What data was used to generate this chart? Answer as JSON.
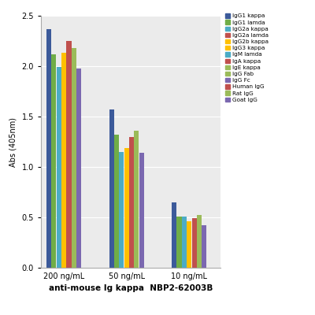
{
  "groups": [
    "200 ng/mL",
    "50 ng/mL",
    "10 ng/mL"
  ],
  "bar_colors": [
    "#3c5a9a",
    "#70ad47",
    "#4bacc6",
    "#ffc000",
    "#c0504d",
    "#9bbb59",
    "#7b68b0"
  ],
  "legend_colors": [
    "#3c5a9a",
    "#70ad47",
    "#4bacc6",
    "#c0504d",
    "#ffc000",
    "#ffc000",
    "#4bacc6",
    "#c0504d",
    "#9bbb59",
    "#9bbb59",
    "#7b68b0",
    "#c0504d",
    "#9bbb59",
    "#7b68b0"
  ],
  "legend_labels": [
    "IgG1 kappa",
    "IgG1 lamda",
    "IgG2a kappa",
    "IgG2a lamda",
    "IgG2b kappa",
    "IgG3 kappa",
    "IgM lamda",
    "IgA kappa",
    "IgE kappa",
    "IgG Fab",
    "IgG Fc",
    "Human IgG",
    "Rat IgG",
    "Goat IgG"
  ],
  "values_200": [
    2.37,
    2.12,
    1.99,
    2.13,
    2.25,
    2.18,
    1.98
  ],
  "values_50": [
    1.57,
    1.32,
    1.15,
    1.19,
    1.3,
    1.36,
    1.14
  ],
  "values_10": [
    0.65,
    0.51,
    0.51,
    0.46,
    0.49,
    0.52,
    0.42
  ],
  "ylabel": "Abs (405nm)",
  "xlabel": "anti-mouse Ig kappa  NBP2-62003B",
  "ylim": [
    0,
    2.5
  ],
  "yticks": [
    0.0,
    0.5,
    1.0,
    1.5,
    2.0,
    2.5
  ],
  "group_centers": [
    0.55,
    2.05,
    3.55
  ],
  "figsize": [
    4.0,
    4.0
  ],
  "dpi": 100
}
